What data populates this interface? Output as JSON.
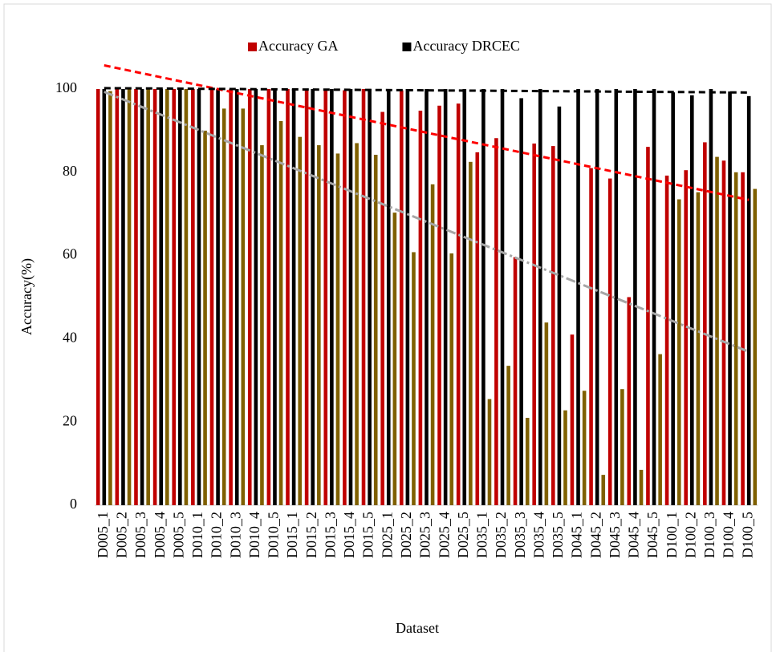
{
  "chart_data": {
    "type": "bar",
    "xlabel": "Dataset",
    "ylabel": "Accuracy(%)",
    "categories": [
      "D005_1",
      "D005_2",
      "D005_3",
      "D005_4",
      "D005_5",
      "D010_1",
      "D010_2",
      "D010_3",
      "D010_4",
      "D010_5",
      "D015_1",
      "D015_2",
      "D015_3",
      "D015_4",
      "D015_5",
      "D025_1",
      "D025_2",
      "D025_3",
      "D025_4",
      "D025_5",
      "D035_1",
      "D035_2",
      "D035_3",
      "D035_4",
      "D035_5",
      "D045_1",
      "D045_2",
      "D045_3",
      "D045_4",
      "D045_5",
      "D100_1",
      "D100_2",
      "D100_3",
      "D100_4",
      "D100_5"
    ],
    "series": [
      {
        "name": "Accuracy GA",
        "color": "#c00000",
        "trendline": true,
        "trend_color": "#ff0000",
        "trend_dash": "8 5",
        "values": [
          100,
          100,
          100,
          100,
          100,
          100,
          100,
          100,
          100,
          100,
          100,
          100,
          100,
          99.7,
          100,
          94.5,
          99.7,
          94.8,
          96,
          96.5,
          84.8,
          88.2,
          59.6,
          86.9,
          86.3,
          41,
          81,
          78.5,
          50,
          86.1,
          79.2,
          80.5,
          87.2,
          82.8,
          80
        ]
      },
      {
        "name": "Accuracy DRCEC",
        "color": "#000000",
        "trendline": true,
        "trend_color": "#000000",
        "trend_dash": "8 5",
        "values": [
          100,
          100,
          100,
          100,
          100,
          100,
          100,
          100,
          100,
          100,
          100,
          100,
          100,
          100,
          100,
          100,
          100,
          100,
          100,
          100,
          100,
          100,
          97.8,
          100,
          95.8,
          100,
          100,
          100,
          100,
          100,
          99.2,
          98.5,
          100,
          99.4,
          98.3
        ]
      },
      {
        "color": "#7f6000",
        "trendline": true,
        "trend_color": "#a6a6a6",
        "trend_dash": "12 4 3 4",
        "values": [
          99.5,
          100,
          100,
          100,
          100,
          90,
          95.3,
          95.3,
          86.5,
          92.3,
          88.5,
          86.5,
          84.5,
          87,
          84.2,
          70.3,
          60.8,
          77.1,
          60.5,
          82.5,
          25.5,
          33.5,
          21,
          43.9,
          22.8,
          27.5,
          7.3,
          27.9,
          8.5,
          36.3,
          73.5,
          75.2,
          83.7,
          80,
          76
        ]
      }
    ],
    "ylim": [
      0,
      100
    ],
    "yticks": [
      0,
      20,
      40,
      60,
      80,
      100
    ],
    "grid": false,
    "legend": "top"
  }
}
